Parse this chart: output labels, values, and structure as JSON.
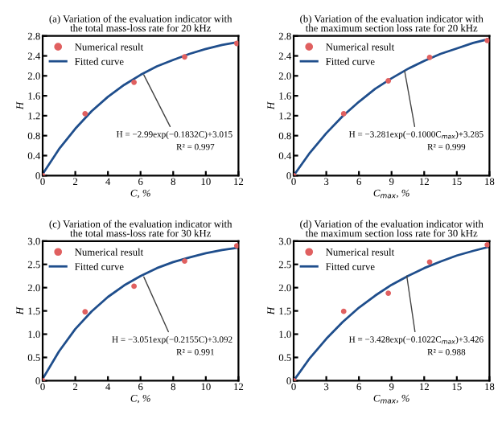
{
  "chart_data": [
    {
      "type": "scatter",
      "title": "(a) Variation of the evaluation indicator with\nthe total mass-loss rate for 20 kHz",
      "xlabel": "C, %",
      "ylabel": "H",
      "xlim": [
        0,
        12
      ],
      "xticks": [
        0,
        2,
        4,
        6,
        8,
        10,
        12
      ],
      "ylim": [
        0,
        2.8
      ],
      "yticks": [
        0,
        0.4,
        0.8,
        1.2,
        1.6,
        {
          "value": 2,
          "label": "2.0"
        },
        2.4,
        2.8
      ],
      "legend": "top left",
      "grid": false,
      "series": [
        {
          "name": "Numerical result",
          "marker": "circle",
          "color": "#e06060",
          "x": [
            0,
            2.6,
            5.6,
            8.7,
            11.9
          ],
          "values": [
            0,
            1.24,
            1.87,
            2.38,
            2.65
          ]
        },
        {
          "name": "Fitted curve",
          "type": "line",
          "line_style": "solid",
          "color": "#1f4e8c",
          "x": [
            0,
            1,
            2,
            3,
            4,
            5,
            6,
            7,
            8,
            9,
            10,
            11,
            12
          ],
          "values": [
            0.03,
            0.53,
            0.94,
            1.29,
            1.58,
            1.82,
            2.02,
            2.19,
            2.32,
            2.44,
            2.54,
            2.62,
            2.68
          ]
        }
      ],
      "annotations": [
        {
          "text": "H = −2.99exp(−0.1832C)+3.015",
          "x": 6.2,
          "y": 2.02
        },
        "R² = 0.997"
      ]
    },
    {
      "type": "scatter",
      "title": "(b) Variation of the evaluation indicator with\nthe maximum section loss rate for 20 kHz",
      "xlabel": "C$_{max}$, %",
      "ylabel": "H",
      "xlim": [
        0,
        18
      ],
      "xticks": [
        0,
        3,
        6,
        9,
        12,
        15,
        18
      ],
      "ylim": [
        0,
        2.8
      ],
      "yticks": [
        0,
        0.4,
        0.8,
        1.2,
        1.6,
        {
          "value": 2,
          "label": "2.0"
        },
        2.4,
        2.8
      ],
      "legend": "top left",
      "grid": false,
      "series": [
        {
          "name": "Numerical result",
          "marker": "circle",
          "color": "#e06060",
          "x": [
            0,
            4.6,
            8.7,
            12.5,
            17.8
          ],
          "values": [
            0,
            1.24,
            1.9,
            2.37,
            2.71
          ]
        },
        {
          "name": "Fitted curve",
          "type": "line",
          "line_style": "solid",
          "color": "#1f4e8c",
          "x": [
            0,
            1.5,
            3,
            4.5,
            6,
            7.5,
            9,
            10.5,
            12,
            13.5,
            15,
            16.5,
            18
          ],
          "values": [
            0,
            0.46,
            0.85,
            1.19,
            1.48,
            1.74,
            1.95,
            2.14,
            2.3,
            2.44,
            2.55,
            2.66,
            2.74
          ]
        }
      ],
      "annotations": [
        {
          "text": "H = −3.281exp(−0.1000C$_{max}$)+3.285",
          "x": 10.2,
          "y": 2.1
        },
        "R² = 0.999"
      ]
    },
    {
      "type": "scatter",
      "title": "(c) Variation of the evaluation indicator with\nthe total mass-loss rate for 30 kHz",
      "xlabel": "C, %",
      "ylabel": "H",
      "xlim": [
        0,
        12
      ],
      "xticks": [
        0,
        2,
        4,
        6,
        8,
        10,
        12
      ],
      "ylim": [
        0,
        3
      ],
      "yticks": [
        0,
        0.5,
        {
          "value": 1,
          "label": "1.0"
        },
        1.5,
        {
          "value": 2,
          "label": "2.0"
        },
        2.5,
        {
          "value": 3,
          "label": "3.0"
        }
      ],
      "legend": "top left",
      "grid": false,
      "series": [
        {
          "name": "Numerical result",
          "marker": "circle",
          "color": "#e06060",
          "x": [
            0,
            2.6,
            5.6,
            8.7,
            11.9
          ],
          "values": [
            0,
            1.48,
            2.03,
            2.57,
            2.9
          ]
        },
        {
          "name": "Fitted curve",
          "type": "line",
          "line_style": "solid",
          "color": "#1f4e8c",
          "x": [
            0,
            1,
            2,
            3,
            4,
            5,
            6,
            7,
            8,
            9,
            10,
            11,
            12
          ],
          "values": [
            0.04,
            0.63,
            1.11,
            1.49,
            1.8,
            2.05,
            2.25,
            2.42,
            2.55,
            2.65,
            2.74,
            2.81,
            2.86
          ]
        }
      ],
      "annotations": [
        {
          "text": "H = −3.051exp(−0.2155C)+3.092",
          "x": 6.2,
          "y": 2.23
        },
        "R² = 0.991"
      ]
    },
    {
      "type": "scatter",
      "title": "(d) Variation of the evaluation indicator with\nthe maximum section loss rate for 30 kHz",
      "xlabel": "C$_{max}$, %",
      "ylabel": "H",
      "xlim": [
        0,
        18
      ],
      "xticks": [
        0,
        3,
        6,
        9,
        12,
        15,
        18
      ],
      "ylim": [
        0,
        3
      ],
      "yticks": [
        0,
        0.5,
        {
          "value": 1,
          "label": "1.0"
        },
        1.5,
        {
          "value": 2,
          "label": "2.0"
        },
        2.5,
        {
          "value": 3,
          "label": "3.0"
        }
      ],
      "legend": "top left",
      "grid": false,
      "series": [
        {
          "name": "Numerical result",
          "marker": "circle",
          "color": "#e06060",
          "x": [
            0,
            4.6,
            8.7,
            12.5,
            17.8
          ],
          "values": [
            0,
            1.49,
            1.88,
            2.55,
            2.92
          ]
        },
        {
          "name": "Fitted curve",
          "type": "line",
          "line_style": "solid",
          "color": "#1f4e8c",
          "x": [
            0,
            1.5,
            3,
            4.5,
            6,
            7.5,
            9,
            10.5,
            12,
            13.5,
            15,
            16.5,
            18
          ],
          "values": [
            0,
            0.49,
            0.9,
            1.26,
            1.57,
            1.83,
            2.06,
            2.25,
            2.42,
            2.56,
            2.69,
            2.79,
            2.88
          ]
        }
      ],
      "annotations": [
        {
          "text": "H = −3.428exp(−0.1022C$_{max}$)+3.426",
          "x": 10.4,
          "y": 2.25
        },
        "R² = 0.988"
      ]
    }
  ]
}
